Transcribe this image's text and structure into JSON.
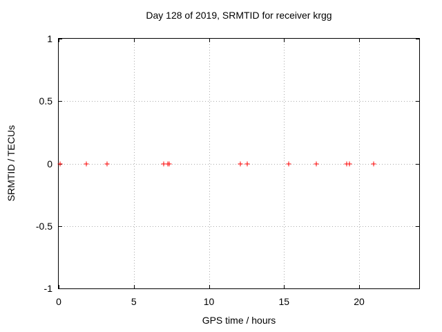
{
  "chart_data": {
    "type": "scatter",
    "title": "Day 128 of 2019, SRMTID for receiver krgg",
    "xlabel": "GPS time / hours",
    "ylabel": "SRMTID / TECUs",
    "xlim": [
      0,
      24
    ],
    "ylim": [
      -1,
      1
    ],
    "grid": true,
    "legend": "none",
    "marker": "plus",
    "marker_color": "#ff0000",
    "grid_color": "#a9a9a9",
    "xticks": [
      {
        "v": 0,
        "label": "0"
      },
      {
        "v": 5,
        "label": "5"
      },
      {
        "v": 10,
        "label": "10"
      },
      {
        "v": 15,
        "label": "15"
      },
      {
        "v": 20,
        "label": "20"
      }
    ],
    "yticks": [
      {
        "v": 1,
        "label": "1"
      },
      {
        "v": 0.5,
        "label": "0.5"
      },
      {
        "v": 0,
        "label": "0"
      },
      {
        "v": -0.5,
        "label": "-0.5"
      },
      {
        "v": -1,
        "label": "-1"
      }
    ],
    "points": [
      {
        "x": 0.1,
        "y": 0
      },
      {
        "x": 1.85,
        "y": 0
      },
      {
        "x": 3.2,
        "y": 0
      },
      {
        "x": 7.0,
        "y": 0
      },
      {
        "x": 7.25,
        "y": 0
      },
      {
        "x": 7.35,
        "y": 0
      },
      {
        "x": 12.1,
        "y": 0
      },
      {
        "x": 12.55,
        "y": 0
      },
      {
        "x": 15.3,
        "y": 0
      },
      {
        "x": 17.15,
        "y": 0
      },
      {
        "x": 19.15,
        "y": 0
      },
      {
        "x": 19.35,
        "y": 0
      },
      {
        "x": 20.95,
        "y": 0
      }
    ]
  }
}
